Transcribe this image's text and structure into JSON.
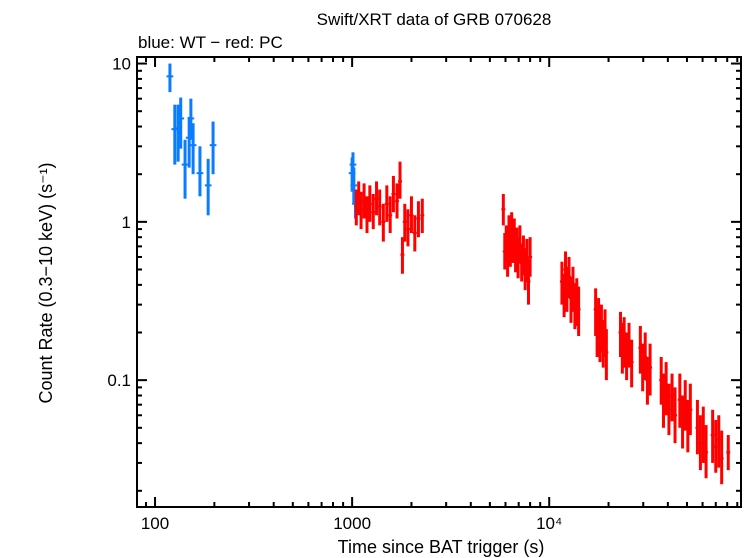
{
  "chart_data": {
    "type": "scatter",
    "title": "Swift/XRT data of GRB 070628",
    "subtitle": "blue: WT − red: PC",
    "xlabel": "Time since BAT trigger (s)",
    "ylabel": "Count Rate (0.3−10 keV) (s⁻¹)",
    "xscale": "log",
    "yscale": "log",
    "xlim": [
      81,
      94000
    ],
    "ylim": [
      0.0158,
      11
    ],
    "x_ticks": [
      {
        "value": 100,
        "label": "100"
      },
      {
        "value": 1000,
        "label": "1000"
      },
      {
        "value": 10000,
        "label": "10⁴"
      }
    ],
    "y_ticks": [
      {
        "value": 10,
        "label": "10"
      },
      {
        "value": 1,
        "label": "1"
      },
      {
        "value": 0.1,
        "label": "0.1"
      }
    ],
    "grid": false,
    "point_format": [
      "x",
      "y",
      "y_low",
      "y_high"
    ],
    "series": [
      {
        "name": "WT",
        "color": "#0a7cff",
        "points": [
          [
            119,
            8.3,
            6.6,
            10
          ],
          [
            126,
            3.85,
            2.3,
            5.5
          ],
          [
            131,
            3.9,
            2.4,
            5.5
          ],
          [
            135,
            4.5,
            2.9,
            6.1
          ],
          [
            142,
            2.3,
            1.4,
            3.3
          ],
          [
            149,
            3.4,
            2.2,
            4.6
          ],
          [
            152,
            4.5,
            3.3,
            6.0
          ],
          [
            156,
            3.05,
            2.0,
            4.2
          ],
          [
            169,
            2.03,
            1.45,
            3.0
          ],
          [
            186,
            1.7,
            1.1,
            2.5
          ],
          [
            197,
            3.05,
            2.0,
            4.3
          ],
          [
            1000,
            2.03,
            1.55,
            2.55
          ],
          [
            1010,
            2.3,
            1.7,
            2.75
          ],
          [
            1020,
            1.7,
            1.3,
            2.2
          ],
          [
            1040,
            1.3,
            1.05,
            1.6
          ]
        ]
      },
      {
        "name": "PC",
        "color": "#ff0000",
        "points": [
          [
            1050,
            1.25,
            0.95,
            1.6
          ],
          [
            1080,
            1.4,
            1.1,
            1.8
          ],
          [
            1110,
            1.2,
            0.9,
            1.55
          ],
          [
            1150,
            1.35,
            1.05,
            1.75
          ],
          [
            1190,
            1.1,
            0.85,
            1.45
          ],
          [
            1230,
            1.3,
            1.0,
            1.7
          ],
          [
            1280,
            1.15,
            0.9,
            1.5
          ],
          [
            1330,
            1.4,
            1.1,
            1.8
          ],
          [
            1380,
            1.25,
            0.95,
            1.6
          ],
          [
            1440,
            1.0,
            0.75,
            1.3
          ],
          [
            1500,
            1.3,
            1.0,
            1.7
          ],
          [
            1560,
            1.1,
            0.85,
            1.45
          ],
          [
            1620,
            1.5,
            1.15,
            1.95
          ],
          [
            1690,
            1.35,
            1.05,
            1.75
          ],
          [
            1750,
            1.8,
            1.4,
            2.4
          ],
          [
            1800,
            0.62,
            0.47,
            0.8
          ],
          [
            1850,
            1.0,
            0.75,
            1.3
          ],
          [
            1920,
            0.9,
            0.7,
            1.2
          ],
          [
            2000,
            1.1,
            0.85,
            1.45
          ],
          [
            2080,
            0.85,
            0.65,
            1.1
          ],
          [
            2170,
            1.05,
            0.8,
            1.35
          ],
          [
            2270,
            1.1,
            0.85,
            1.4
          ],
          [
            5850,
            1.2,
            0.95,
            1.5
          ],
          [
            5950,
            0.65,
            0.5,
            0.85
          ],
          [
            6050,
            0.75,
            0.55,
            0.95
          ],
          [
            6150,
            0.6,
            0.45,
            0.8
          ],
          [
            6250,
            0.85,
            0.65,
            1.1
          ],
          [
            6350,
            0.7,
            0.52,
            0.92
          ],
          [
            6450,
            0.9,
            0.7,
            1.15
          ],
          [
            6550,
            0.75,
            0.55,
            0.98
          ],
          [
            6650,
            0.8,
            0.6,
            1.05
          ],
          [
            6750,
            0.65,
            0.48,
            0.86
          ],
          [
            6850,
            0.7,
            0.52,
            0.92
          ],
          [
            6950,
            0.6,
            0.44,
            0.8
          ],
          [
            7100,
            0.72,
            0.55,
            0.95
          ],
          [
            7250,
            0.55,
            0.42,
            0.72
          ],
          [
            7400,
            0.62,
            0.46,
            0.82
          ],
          [
            7550,
            0.5,
            0.37,
            0.68
          ],
          [
            7700,
            0.58,
            0.42,
            0.78
          ],
          [
            7850,
            0.42,
            0.3,
            0.58
          ],
          [
            8000,
            0.6,
            0.45,
            0.8
          ],
          [
            11600,
            0.42,
            0.3,
            0.56
          ],
          [
            11900,
            0.35,
            0.25,
            0.47
          ],
          [
            12100,
            0.5,
            0.37,
            0.65
          ],
          [
            12300,
            0.38,
            0.27,
            0.52
          ],
          [
            12600,
            0.45,
            0.33,
            0.6
          ],
          [
            12900,
            0.33,
            0.23,
            0.45
          ],
          [
            13200,
            0.38,
            0.27,
            0.52
          ],
          [
            13500,
            0.3,
            0.21,
            0.41
          ],
          [
            13800,
            0.32,
            0.22,
            0.44
          ],
          [
            14100,
            0.28,
            0.19,
            0.39
          ],
          [
            17200,
            0.28,
            0.19,
            0.38
          ],
          [
            17500,
            0.2,
            0.14,
            0.28
          ],
          [
            17800,
            0.24,
            0.17,
            0.33
          ],
          [
            18100,
            0.18,
            0.13,
            0.26
          ],
          [
            18400,
            0.22,
            0.15,
            0.3
          ],
          [
            18800,
            0.17,
            0.12,
            0.24
          ],
          [
            19200,
            0.2,
            0.14,
            0.28
          ],
          [
            19500,
            0.15,
            0.1,
            0.21
          ],
          [
            23000,
            0.2,
            0.14,
            0.27
          ],
          [
            23500,
            0.16,
            0.11,
            0.23
          ],
          [
            24000,
            0.18,
            0.12,
            0.25
          ],
          [
            24700,
            0.14,
            0.1,
            0.2
          ],
          [
            25400,
            0.17,
            0.12,
            0.23
          ],
          [
            26200,
            0.13,
            0.09,
            0.18
          ],
          [
            29000,
            0.16,
            0.11,
            0.22
          ],
          [
            29800,
            0.12,
            0.085,
            0.17
          ],
          [
            30700,
            0.14,
            0.1,
            0.2
          ],
          [
            31500,
            0.1,
            0.07,
            0.14
          ],
          [
            32500,
            0.12,
            0.08,
            0.17
          ],
          [
            37000,
            0.1,
            0.07,
            0.14
          ],
          [
            38000,
            0.075,
            0.05,
            0.11
          ],
          [
            39200,
            0.09,
            0.06,
            0.13
          ],
          [
            40500,
            0.065,
            0.045,
            0.095
          ],
          [
            42000,
            0.08,
            0.055,
            0.11
          ],
          [
            43500,
            0.06,
            0.04,
            0.09
          ],
          [
            46000,
            0.075,
            0.05,
            0.11
          ],
          [
            47500,
            0.055,
            0.037,
            0.08
          ],
          [
            49000,
            0.07,
            0.048,
            0.1
          ],
          [
            50500,
            0.05,
            0.035,
            0.075
          ],
          [
            52000,
            0.065,
            0.045,
            0.095
          ],
          [
            56500,
            0.05,
            0.034,
            0.075
          ],
          [
            58500,
            0.04,
            0.027,
            0.06
          ],
          [
            60500,
            0.046,
            0.03,
            0.068
          ],
          [
            62500,
            0.035,
            0.024,
            0.052
          ],
          [
            67500,
            0.045,
            0.03,
            0.065
          ],
          [
            70000,
            0.038,
            0.026,
            0.056
          ],
          [
            72500,
            0.042,
            0.028,
            0.06
          ],
          [
            75000,
            0.032,
            0.022,
            0.048
          ],
          [
            81000,
            0.035,
            0.027,
            0.045
          ]
        ]
      }
    ]
  }
}
